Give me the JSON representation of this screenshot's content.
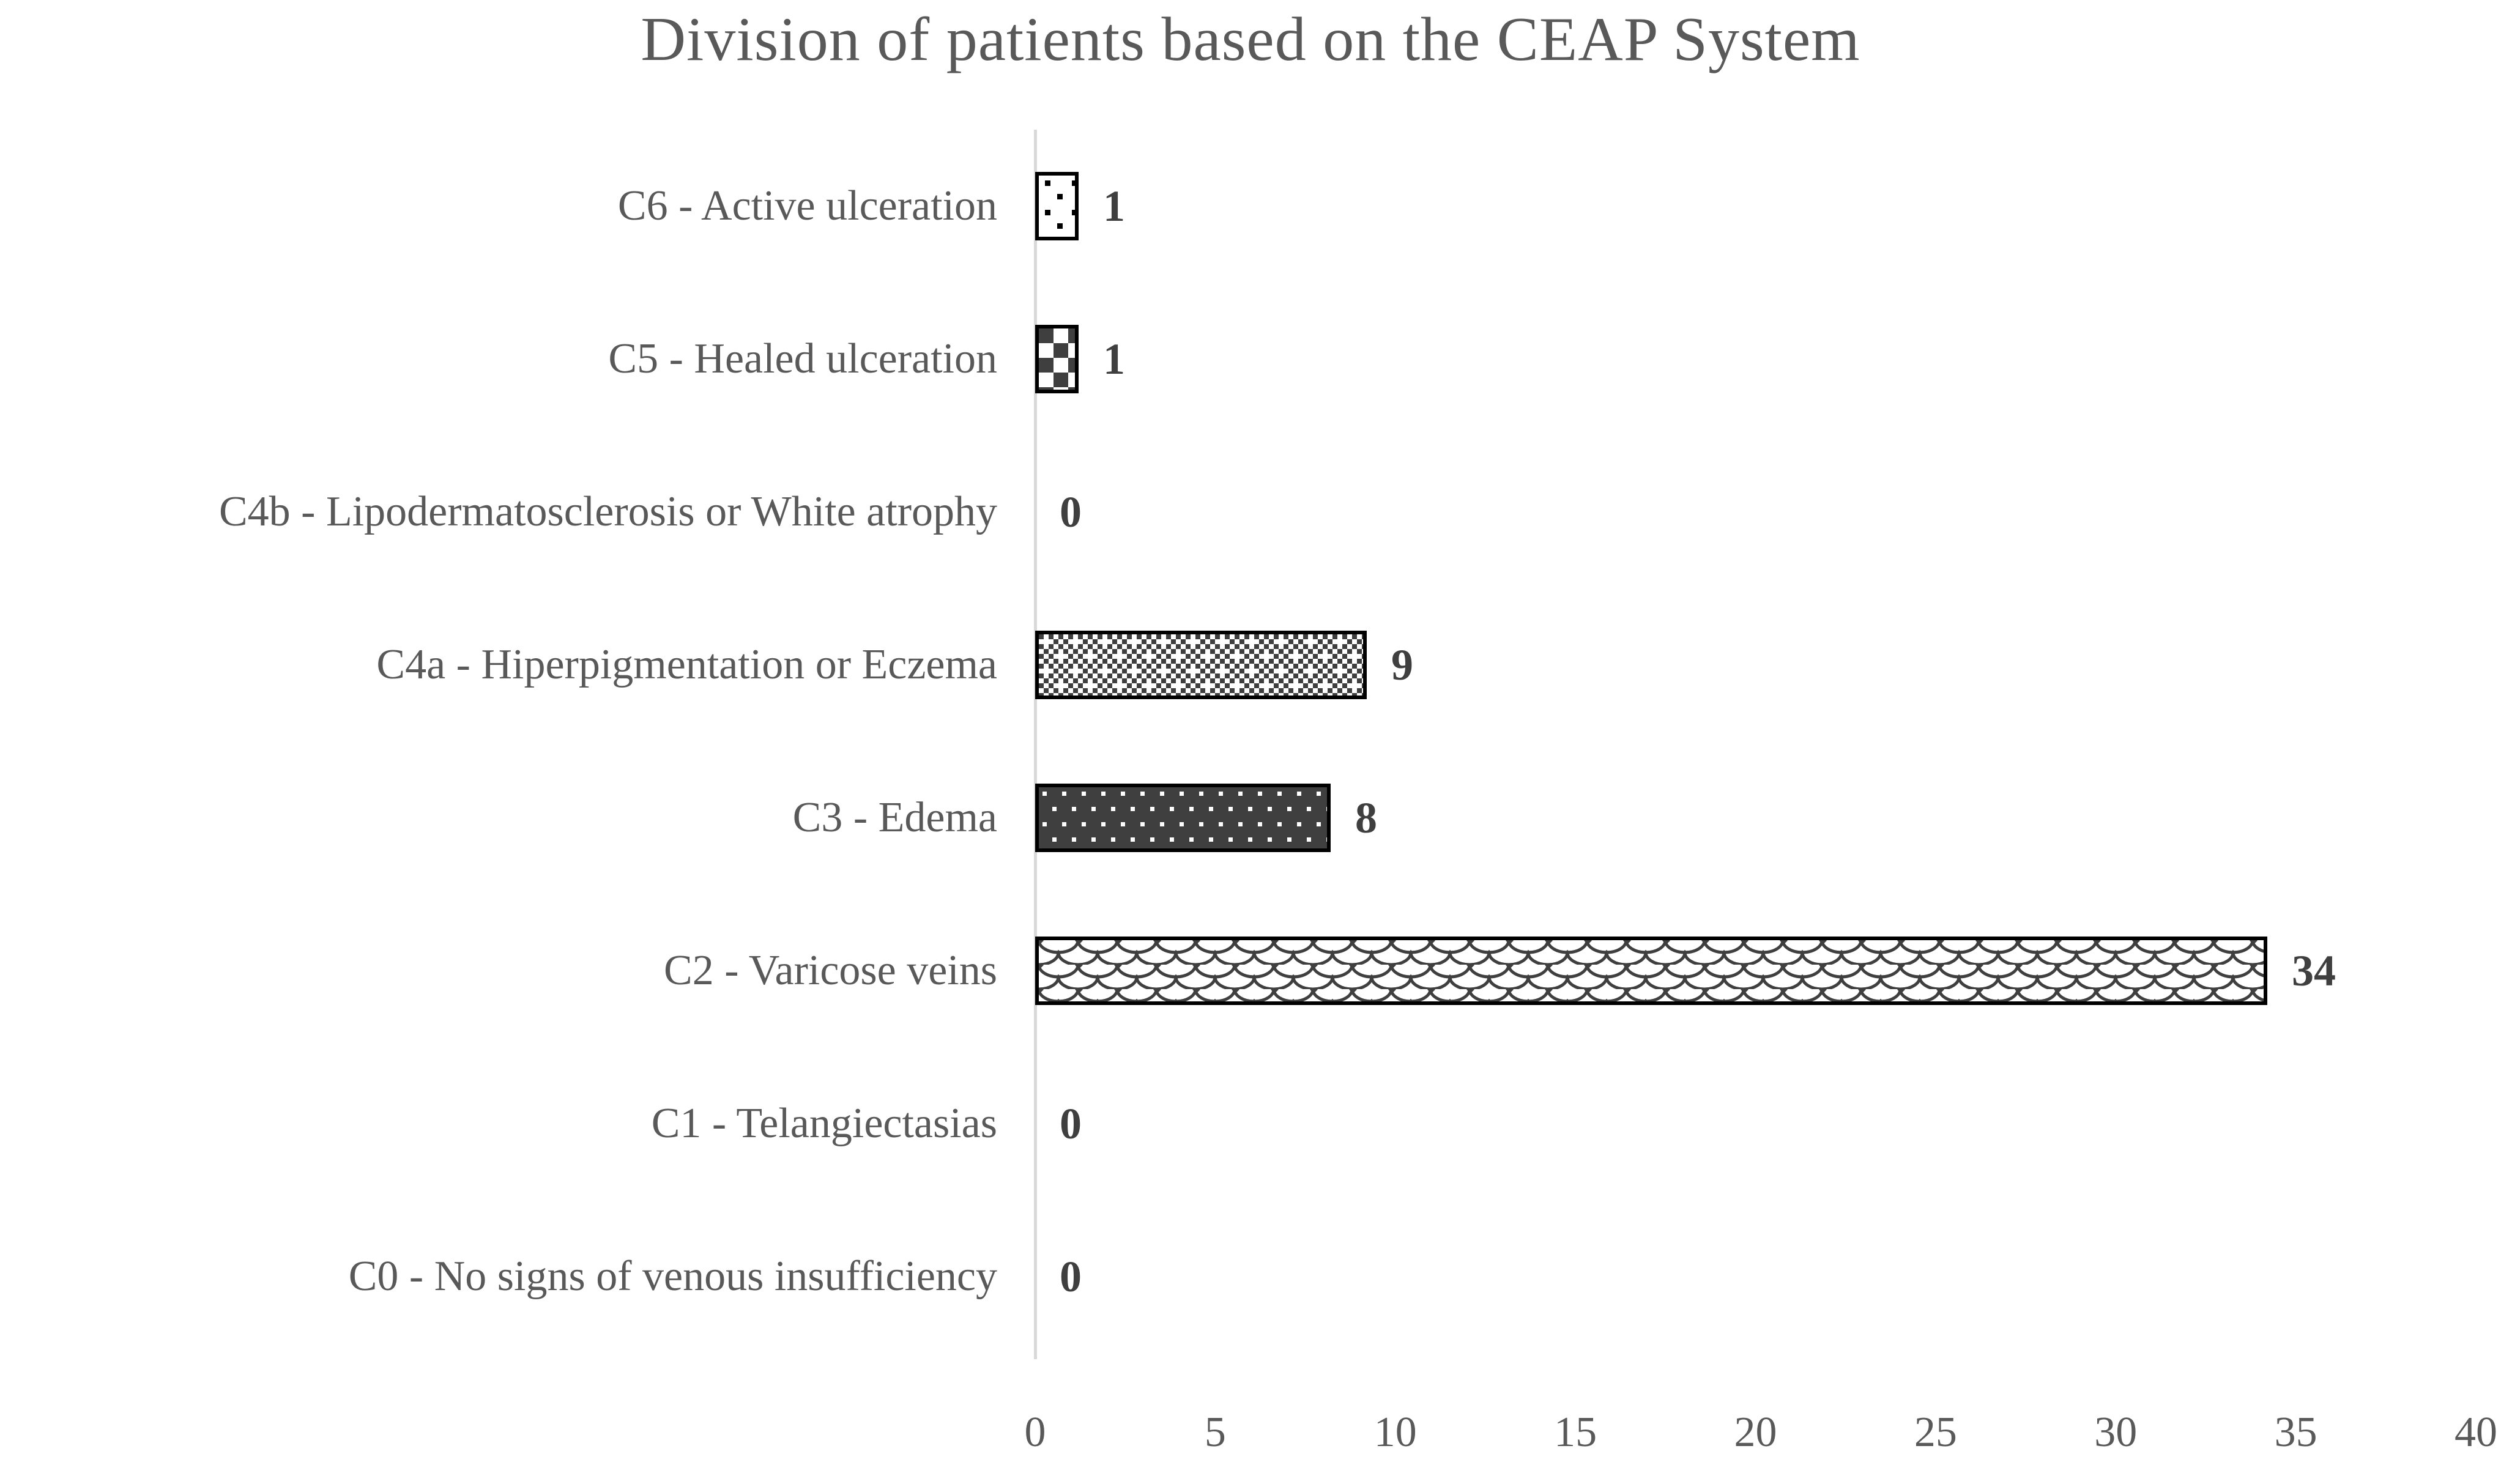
{
  "chart_data": {
    "type": "bar",
    "orientation": "horizontal",
    "title": "Division of patients based on the CEAP System",
    "categories": [
      "C6 - Active ulceration",
      "C5 - Healed ulceration",
      "C4b - Lipodermatosclerosis or White atrophy",
      "C4a - Hiperpigmentation or Eczema",
      "C3 - Edema",
      "C2 - Varicose veins",
      "C1 - Telangiectasias",
      "C0 - No signs of venous insufficiency"
    ],
    "values": [
      1,
      1,
      0,
      9,
      8,
      34,
      0,
      0
    ],
    "data_labels": [
      "1",
      "1",
      "0",
      "9",
      "8",
      "34",
      "0",
      "0"
    ],
    "bar_patterns": [
      "black-dots-on-white",
      "large-checkerboard",
      "none",
      "fine-checkerboard-with-white-crosses",
      "white-dots-on-dark",
      "woven-scales",
      "none",
      "none"
    ],
    "xlabel": "",
    "ylabel": "",
    "xlim": [
      0,
      40
    ],
    "x_ticks": [
      "0",
      "5",
      "10",
      "15",
      "20",
      "25",
      "30",
      "35",
      "40"
    ],
    "grid": false,
    "legend": "none",
    "colors": {
      "background": "#ffffff",
      "pattern_dark": "#3f3f3f",
      "bar_border": "#000000",
      "axis_line": "#d9d9d9",
      "label_text": "#595959",
      "value_label_text": "#3f3f3f"
    }
  }
}
